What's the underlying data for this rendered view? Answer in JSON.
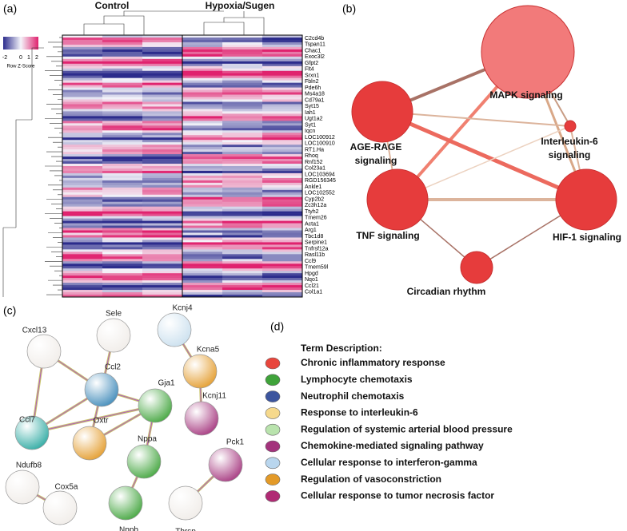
{
  "panels": {
    "a": "(a)",
    "b": "(b)",
    "c": "(c)",
    "d": "(d)"
  },
  "heatmap": {
    "groups": [
      "Control",
      "Hypoxia/Sugen"
    ],
    "key_title": "Row Z-Score",
    "key_ticks": [
      "-2",
      "0",
      "1",
      "2"
    ],
    "genes": [
      "C2cd4b",
      "Tspan11",
      "Chac1",
      "Exoc3l2",
      "Gfpt2",
      "Flt4",
      "Srxn1",
      "Fbln2",
      "Pde6h",
      "Ms4a18",
      "Cd79a1",
      "Syt15",
      "Iah1",
      "Ugt1a2",
      "Syt1",
      "Iqcn",
      "LOC100912",
      "LOC100910",
      "RT1.Ha",
      "Rhoq",
      "Rnf152",
      "Col23a1",
      "LOC103694",
      "RGD156345",
      "Ankle1",
      "LOC102552",
      "Cyp2b2",
      "Zc3h12a",
      "Ttyh2",
      "Tmem26",
      "Acta1",
      "Arg1",
      "Tbc1d8",
      "Serpine1",
      "Tnfrsf12a",
      "Rasl11b",
      "Ccl9",
      "Tmem59l",
      "Hpgd",
      "Nqo1",
      "Ccl21",
      "Col1a1"
    ]
  },
  "pathway_network": {
    "nodes": [
      {
        "label": [
          "MAPK signaling"
        ]
      },
      {
        "label": [
          "AGE-RAGE",
          "signaling"
        ]
      },
      {
        "label": [
          "Interleukin-6",
          "signaling"
        ]
      },
      {
        "label": [
          "TNF signaling"
        ]
      },
      {
        "label": [
          "HIF-1 signaling"
        ]
      },
      {
        "label": [
          "Circadian rhythm"
        ]
      }
    ]
  },
  "protein_network": {
    "nodes": [
      "Cxcl13",
      "Sele",
      "Kcnj4",
      "Kcna5",
      "Ccl2",
      "Gja1",
      "Kcnj11",
      "Ccl7",
      "Oxtr",
      "Nppa",
      "Ndufb8",
      "Pck1",
      "Cox5a",
      "Nppb",
      "Thrsp"
    ]
  },
  "legend": {
    "title": "Term Description:",
    "terms": [
      {
        "label": "Chronic inflammatory response",
        "color": "#e8463c"
      },
      {
        "label": "Lymphocyte chemotaxis",
        "color": "#3fa33a"
      },
      {
        "label": "Neutrophil chemotaxis",
        "color": "#3c559e"
      },
      {
        "label": "Response to interleukin-6",
        "color": "#f6d98c"
      },
      {
        "label": "Regulation of systemic arterial blood pressure",
        "color": "#b9e3ad"
      },
      {
        "label": "Chemokine-mediated signaling pathway",
        "color": "#a3337c"
      },
      {
        "label": "Cellular response to interferon-gamma",
        "color": "#b9d6ee"
      },
      {
        "label": "Regulation of vasoconstriction",
        "color": "#e39a28"
      },
      {
        "label": "Cellular response to tumor necrosis factor",
        "color": "#b02a74"
      }
    ]
  }
}
